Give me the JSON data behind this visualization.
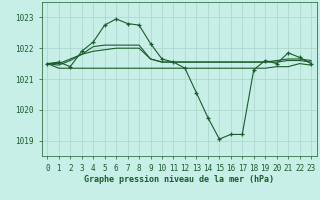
{
  "bg_color": "#c8eee8",
  "grid_color": "#b0d8d0",
  "line_color": "#1a5c2a",
  "title": "Graphe pression niveau de la mer (hPa)",
  "ylim": [
    1018.5,
    1023.5
  ],
  "xlim": [
    -0.5,
    23.5
  ],
  "yticks": [
    1019,
    1020,
    1021,
    1022,
    1023
  ],
  "xticks": [
    0,
    1,
    2,
    3,
    4,
    5,
    6,
    7,
    8,
    9,
    10,
    11,
    12,
    13,
    14,
    15,
    16,
    17,
    18,
    19,
    20,
    21,
    22,
    23
  ],
  "series_main": {
    "x": [
      0,
      1,
      2,
      3,
      4,
      5,
      6,
      7,
      8,
      9,
      10,
      11,
      12,
      13,
      14,
      15,
      16,
      17,
      18,
      19,
      20,
      21,
      22,
      23
    ],
    "y": [
      1021.5,
      1021.55,
      1021.4,
      1021.9,
      1022.2,
      1022.75,
      1022.95,
      1022.8,
      1022.75,
      1022.15,
      1021.65,
      1021.55,
      1021.35,
      1020.55,
      1019.75,
      1019.05,
      1019.2,
      1019.2,
      1021.3,
      1021.6,
      1021.5,
      1021.85,
      1021.7,
      1021.5
    ]
  },
  "series_flat1": {
    "x": [
      0,
      1,
      2,
      3,
      4,
      5,
      6,
      7,
      8,
      9,
      10,
      11,
      12,
      13,
      14,
      15,
      16,
      17,
      18,
      19,
      20,
      21,
      22,
      23
    ],
    "y": [
      1021.5,
      1021.45,
      1021.6,
      1021.8,
      1021.9,
      1021.95,
      1022.0,
      1022.0,
      1022.0,
      1021.65,
      1021.55,
      1021.55,
      1021.55,
      1021.55,
      1021.55,
      1021.55,
      1021.55,
      1021.55,
      1021.55,
      1021.55,
      1021.55,
      1021.6,
      1021.6,
      1021.55
    ]
  },
  "series_flat2": {
    "x": [
      0,
      1,
      2,
      3,
      4,
      5,
      6,
      7,
      8,
      9,
      10,
      11,
      12,
      13,
      14,
      15,
      16,
      17,
      18,
      19,
      20,
      21,
      22,
      23
    ],
    "y": [
      1021.5,
      1021.35,
      1021.35,
      1021.35,
      1021.35,
      1021.35,
      1021.35,
      1021.35,
      1021.35,
      1021.35,
      1021.35,
      1021.35,
      1021.35,
      1021.35,
      1021.35,
      1021.35,
      1021.35,
      1021.35,
      1021.35,
      1021.35,
      1021.4,
      1021.4,
      1021.5,
      1021.45
    ]
  },
  "series_flat3": {
    "x": [
      0,
      1,
      2,
      3,
      4,
      5,
      6,
      7,
      8,
      9,
      10,
      11,
      12,
      13,
      14,
      15,
      16,
      17,
      18,
      19,
      20,
      21,
      22,
      23
    ],
    "y": [
      1021.5,
      1021.5,
      1021.65,
      1021.8,
      1022.05,
      1022.1,
      1022.1,
      1022.1,
      1022.1,
      1021.65,
      1021.55,
      1021.55,
      1021.55,
      1021.55,
      1021.55,
      1021.55,
      1021.55,
      1021.55,
      1021.55,
      1021.55,
      1021.6,
      1021.65,
      1021.65,
      1021.6
    ]
  },
  "figsize": [
    3.2,
    2.0
  ],
  "dpi": 100
}
